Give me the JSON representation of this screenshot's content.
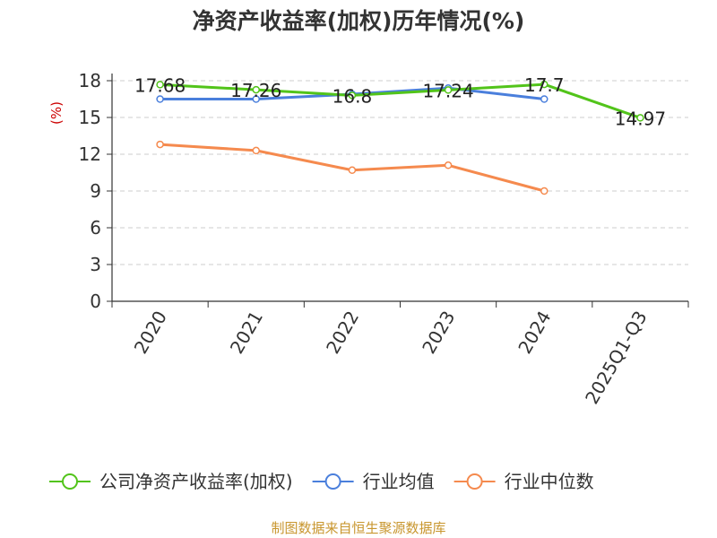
{
  "chart_data": {
    "type": "line",
    "title": "净资产收益率(加权)历年情况(%)",
    "ylabel": "(%)",
    "xlabel": "",
    "categories": [
      "2020",
      "2021",
      "2022",
      "2023",
      "2024",
      "2025Q1-Q3"
    ],
    "ylim": [
      0,
      18
    ],
    "yticks": [
      0,
      3,
      6,
      9,
      12,
      15,
      18
    ],
    "grid": true,
    "legend_position": "bottom",
    "series": [
      {
        "name": "公司净资产收益率(加权)",
        "color": "#52c41a",
        "values": [
          17.68,
          17.26,
          16.8,
          17.24,
          17.7,
          14.97
        ],
        "labels": [
          "17.68",
          "17.26",
          "16.8",
          "17.24",
          "17.7",
          "14.97"
        ]
      },
      {
        "name": "行业均值",
        "color": "#4a7fdc",
        "values": [
          16.5,
          16.5,
          16.9,
          17.4,
          16.5,
          null
        ]
      },
      {
        "name": "行业中位数",
        "color": "#f58a4e",
        "values": [
          12.8,
          12.3,
          10.7,
          11.1,
          9.0,
          null
        ]
      }
    ]
  },
  "footer": {
    "source": "制图数据来自恒生聚源数据库",
    "color": "#c8962e"
  },
  "colors": {
    "ylabel": "#cc0000",
    "grid": "#cccccc",
    "axis": "#333333"
  }
}
